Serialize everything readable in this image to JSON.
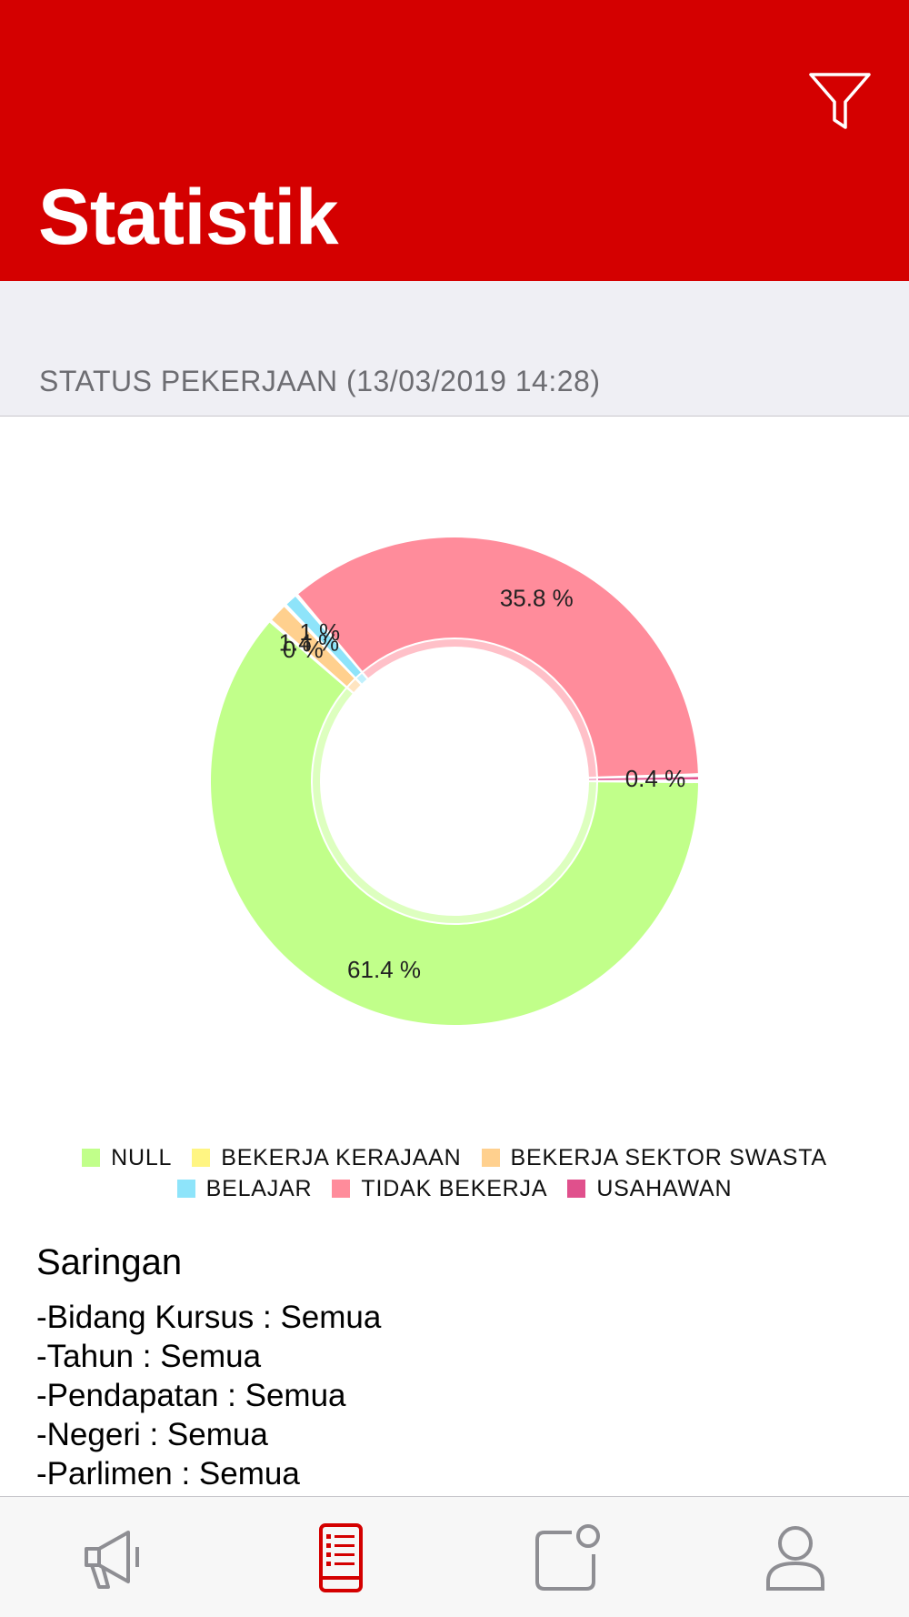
{
  "header": {
    "title": "Statistik",
    "icon": "filter-icon",
    "color": "#d40000"
  },
  "section": {
    "title": "STATUS PEKERJAAN (13/03/2019 14:28)"
  },
  "chart_data": {
    "type": "pie",
    "categories": [
      "NULL",
      "BEKERJA KERAJAAN",
      "BEKERJA SEKTOR SWASTA",
      "BELAJAR",
      "TIDAK BEKERJA",
      "USAHAWAN"
    ],
    "values": [
      61.4,
      0.0,
      1.4,
      1.0,
      35.8,
      0.4
    ],
    "data_labels": [
      "61.4 %",
      "0 %",
      "1.4 %",
      "1 %",
      "35.8 %",
      "0.4 %"
    ],
    "colors": [
      "#c1ff8a",
      "#fff582",
      "#ffd08e",
      "#8ee4fa",
      "#ff8c9b",
      "#e0508c"
    ],
    "donut": true,
    "legend_position": "bottom"
  },
  "filters": {
    "title": "Saringan",
    "lines": [
      "-Bidang Kursus : Semua",
      "-Tahun : Semua",
      "-Pendapatan : Semua",
      "-Negeri : Semua",
      "-Parlimen : Semua"
    ]
  },
  "tabbar": {
    "items": [
      {
        "icon": "megaphone-icon",
        "active": false
      },
      {
        "icon": "document-list-icon",
        "active": true
      },
      {
        "icon": "notification-square-icon",
        "active": false
      },
      {
        "icon": "user-icon",
        "active": false
      }
    ],
    "active_color": "#d40000",
    "inactive_color": "#8e8e93"
  }
}
